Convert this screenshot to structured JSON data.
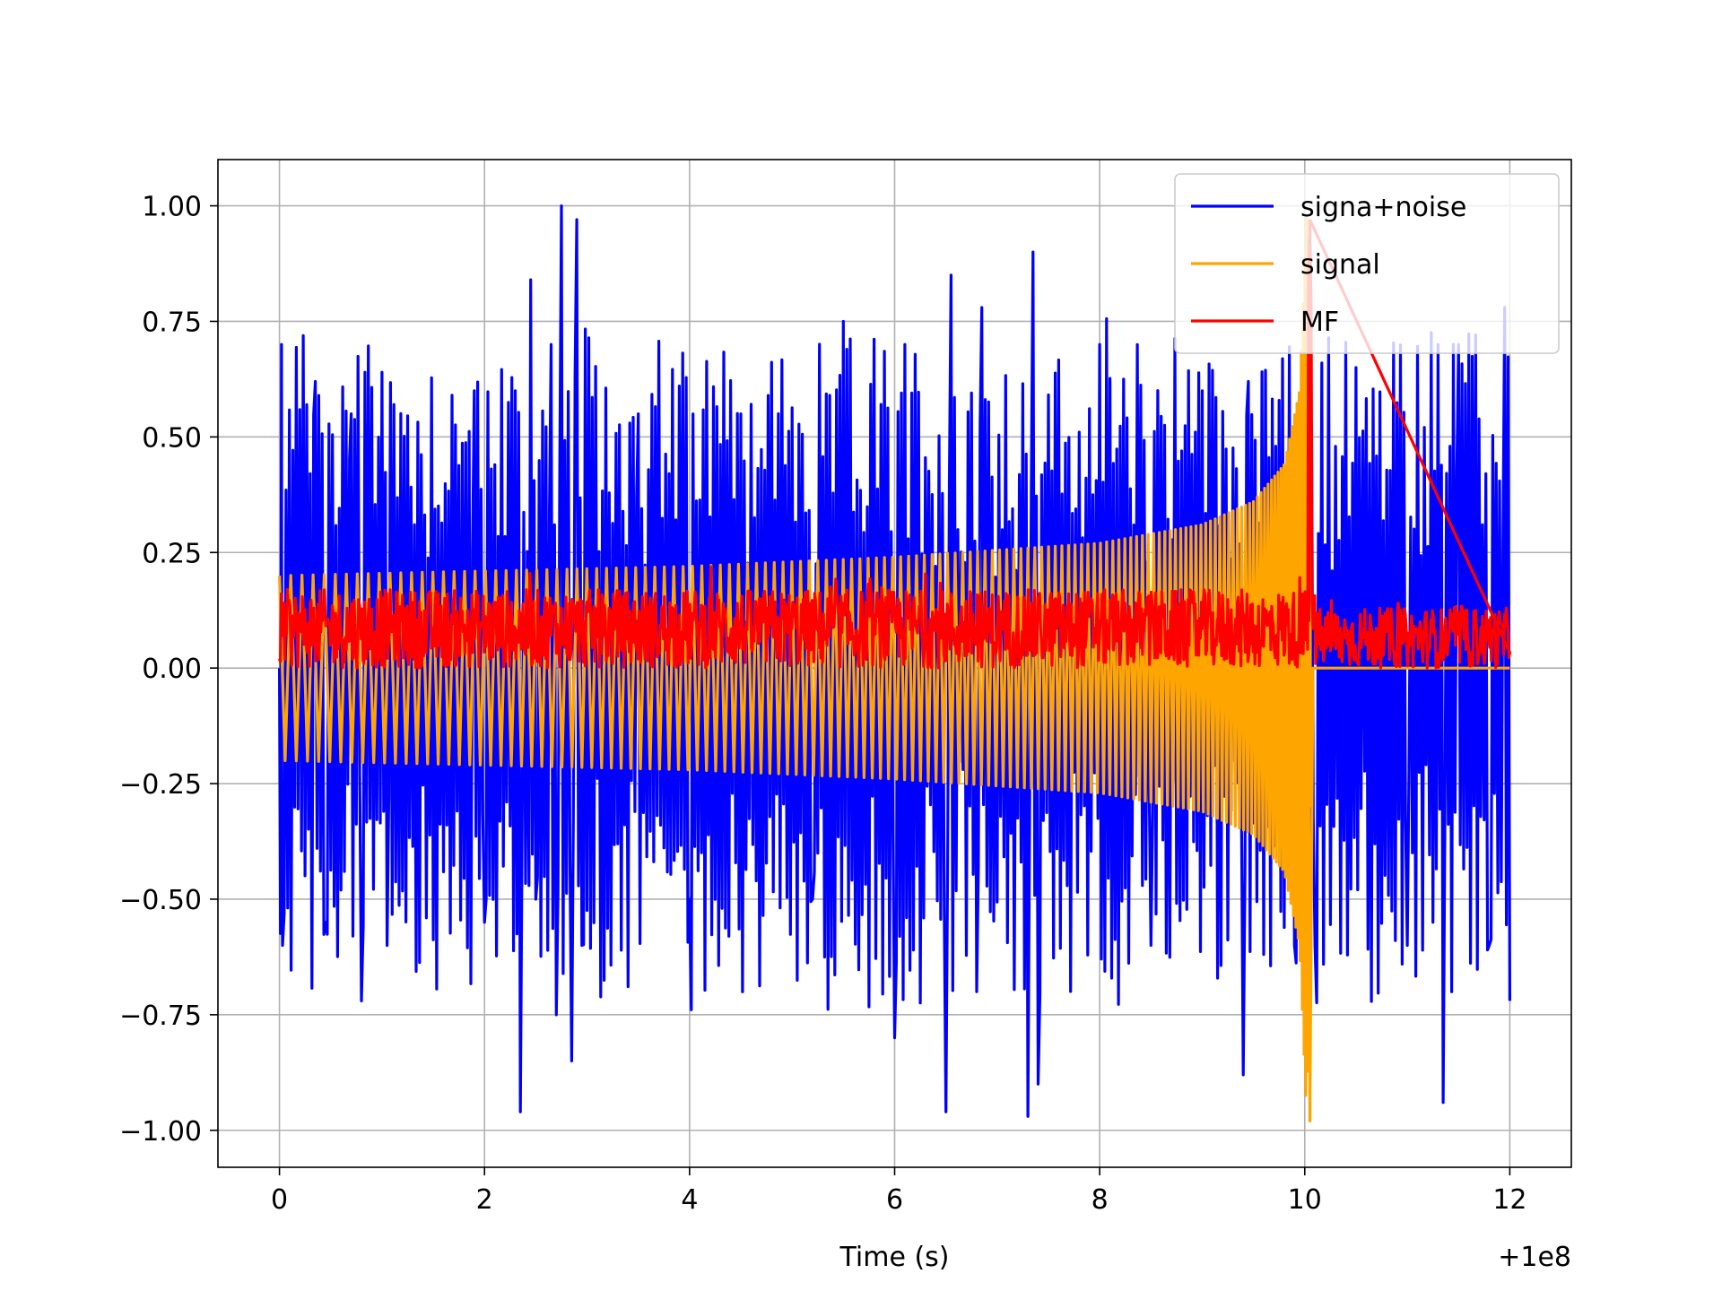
{
  "chart_data": {
    "type": "line",
    "title": "",
    "xlabel": "Time (s)",
    "ylabel": "",
    "x_offset_label": "+1e8",
    "xlim": [
      -0.6,
      12.6
    ],
    "ylim": [
      -1.08,
      1.1
    ],
    "xticks": [
      0,
      2,
      4,
      6,
      8,
      10,
      12
    ],
    "xtick_labels": [
      "0",
      "2",
      "4",
      "6",
      "8",
      "10",
      "12"
    ],
    "yticks": [
      1.0,
      0.75,
      0.5,
      0.25,
      0.0,
      -0.25,
      -0.5,
      -0.75,
      -1.0
    ],
    "ytick_labels": [
      "1.00",
      "0.75",
      "0.50",
      "0.25",
      "0.00",
      "−0.25",
      "−0.50",
      "−0.75",
      "−1.00"
    ],
    "grid": true,
    "legend_position": "top-right",
    "series": [
      {
        "name": "signa+noise",
        "color": "#0000ff",
        "description": "noisy oscillation between about -0.96 and 1.00 over x = 0 to 12",
        "x": [
          0.0,
          0.02,
          0.03,
          0.35,
          0.45,
          0.7,
          0.8,
          1.0,
          1.05,
          1.9,
          2.0,
          2.3,
          2.35,
          2.45,
          2.5,
          2.65,
          2.7,
          2.75,
          2.85,
          2.9,
          2.95,
          3.5,
          4.0,
          4.5,
          5.2,
          5.5,
          6.0,
          6.1,
          6.5,
          6.55,
          6.8,
          6.85,
          7.3,
          7.35,
          7.4,
          8.0,
          8.5,
          9.0,
          9.4,
          9.45,
          9.9,
          10.0,
          10.1,
          10.5,
          11.0,
          11.3,
          11.35,
          11.5,
          11.8,
          11.95,
          12.0
        ],
        "y": [
          0.0,
          0.7,
          -0.6,
          0.62,
          -0.55,
          0.55,
          -0.72,
          0.64,
          -0.6,
          0.6,
          -0.55,
          0.6,
          -0.96,
          0.84,
          -0.5,
          0.7,
          -0.75,
          1.0,
          -0.85,
          0.97,
          -0.6,
          0.55,
          -0.5,
          0.55,
          -0.5,
          0.75,
          -0.8,
          0.7,
          -0.96,
          0.85,
          -0.7,
          0.78,
          -0.97,
          0.9,
          -0.9,
          0.7,
          -0.6,
          0.6,
          -0.88,
          0.62,
          -0.6,
          0.5,
          -0.6,
          0.65,
          -0.6,
          0.7,
          -0.94,
          0.7,
          -0.6,
          0.78,
          -0.72
        ]
      },
      {
        "name": "signal",
        "color": "#ffa500",
        "description": "chirp with envelope about ±0.2 growing to +0.98 / -0.98 near x = 10.05, then 0 after",
        "x": [
          0.0,
          2.0,
          4.0,
          6.0,
          8.0,
          9.0,
          9.5,
          9.8,
          9.95,
          10.02,
          10.06,
          10.1,
          12.0
        ],
        "y_upper": [
          0.2,
          0.21,
          0.22,
          0.24,
          0.27,
          0.31,
          0.36,
          0.44,
          0.6,
          0.98,
          0.0,
          0.0,
          0.0
        ],
        "y_lower": [
          -0.2,
          -0.21,
          -0.22,
          -0.24,
          -0.27,
          -0.31,
          -0.36,
          -0.44,
          -0.6,
          -0.98,
          0.0,
          0.0,
          0.0
        ]
      },
      {
        "name": "MF",
        "color": "#ff0000",
        "description": "noisy positive trace around 0.0 to 0.25 with a sharp peak of about 0.97 at x = 10.05",
        "x": [
          0.0,
          0.4,
          1.5,
          2.7,
          3.5,
          5.0,
          6.5,
          7.1,
          8.0,
          9.0,
          9.9,
          10.0,
          10.05,
          10.1,
          10.5,
          11.0,
          12.0
        ],
        "y": [
          0.05,
          0.24,
          0.2,
          0.22,
          0.2,
          0.19,
          0.19,
          0.24,
          0.2,
          0.2,
          0.2,
          0.5,
          0.97,
          0.2,
          0.15,
          0.2,
          0.1
        ]
      }
    ]
  }
}
